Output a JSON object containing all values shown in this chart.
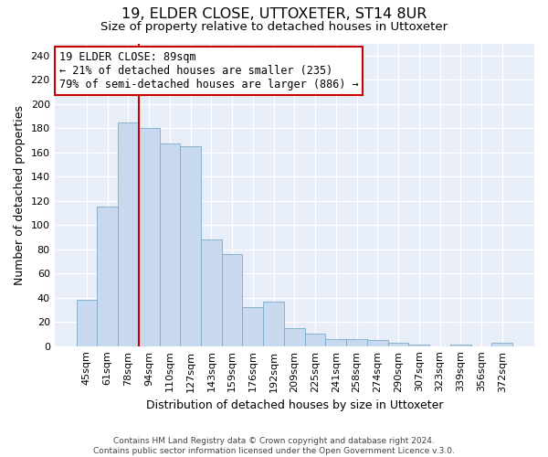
{
  "title": "19, ELDER CLOSE, UTTOXETER, ST14 8UR",
  "subtitle": "Size of property relative to detached houses in Uttoxeter",
  "xlabel": "Distribution of detached houses by size in Uttoxeter",
  "ylabel": "Number of detached properties",
  "categories": [
    "45sqm",
    "61sqm",
    "78sqm",
    "94sqm",
    "110sqm",
    "127sqm",
    "143sqm",
    "159sqm",
    "176sqm",
    "192sqm",
    "209sqm",
    "225sqm",
    "241sqm",
    "258sqm",
    "274sqm",
    "290sqm",
    "307sqm",
    "323sqm",
    "339sqm",
    "356sqm",
    "372sqm"
  ],
  "values": [
    38,
    115,
    185,
    180,
    167,
    165,
    88,
    76,
    32,
    37,
    15,
    10,
    6,
    6,
    5,
    3,
    1,
    0,
    1,
    0,
    3
  ],
  "bar_color": "#c8d8ee",
  "bar_edge_color": "#7aaac8",
  "vline_index": 3,
  "vline_color": "#cc0000",
  "ylim": [
    0,
    250
  ],
  "yticks": [
    0,
    20,
    40,
    60,
    80,
    100,
    120,
    140,
    160,
    180,
    200,
    220,
    240
  ],
  "annotation_title": "19 ELDER CLOSE: 89sqm",
  "annotation_line1": "← 21% of detached houses are smaller (235)",
  "annotation_line2": "79% of semi-detached houses are larger (886) →",
  "annotation_box_color": "#ffffff",
  "annotation_box_edgecolor": "#cc0000",
  "footer1": "Contains HM Land Registry data © Crown copyright and database right 2024.",
  "footer2": "Contains public sector information licensed under the Open Government Licence v.3.0.",
  "plot_bg_color": "#e8eef8",
  "title_fontsize": 11.5,
  "subtitle_fontsize": 9.5,
  "axis_label_fontsize": 9,
  "tick_fontsize": 8,
  "annotation_fontsize": 8.5,
  "footer_fontsize": 6.5
}
